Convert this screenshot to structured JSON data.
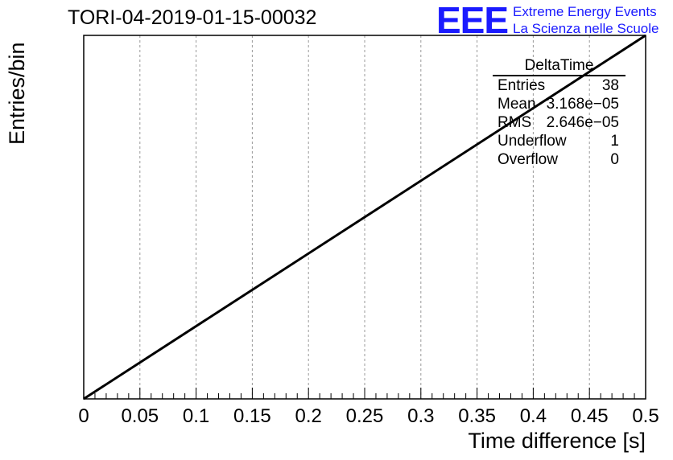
{
  "header": {
    "title": "TORI-04-2019-01-15-00032",
    "logo": "EEE",
    "logo_line1": "Extreme Energy Events",
    "logo_line2": "La Scienza nelle Scuole"
  },
  "stats_box": {
    "name": "DeltaTime",
    "rows": [
      {
        "label": "Entries",
        "value": "38"
      },
      {
        "label": "Mean",
        "value": "3.168e−05"
      },
      {
        "label": "RMS",
        "value": "2.646e−05"
      },
      {
        "label": "Underflow",
        "value": "1"
      },
      {
        "label": "Overflow",
        "value": "0"
      }
    ]
  },
  "chart_data": {
    "type": "line",
    "title": "TORI-04-2019-01-15-00032",
    "xlabel": "Time difference [s]",
    "ylabel": "Entries/bin",
    "xlim": [
      0,
      0.5
    ],
    "x_ticks": [
      "0",
      "0.05",
      "0.1",
      "0.15",
      "0.2",
      "0.25",
      "0.3",
      "0.35",
      "0.4",
      "0.45",
      "0.5"
    ],
    "x_tick_values": [
      0,
      0.05,
      0.1,
      0.15,
      0.2,
      0.25,
      0.3,
      0.35,
      0.4,
      0.45,
      0.5
    ],
    "grid_x": true,
    "series": [
      {
        "x": [
          0,
          0.5
        ],
        "y": [
          0,
          1
        ]
      }
    ],
    "colors": {
      "line": "#000000",
      "grid": "#999999",
      "logo": "#1a1aff"
    }
  }
}
